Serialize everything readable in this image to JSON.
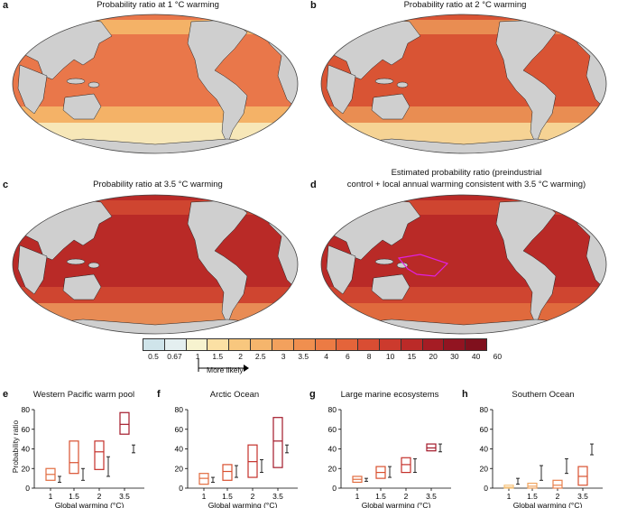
{
  "maps": [
    {
      "letter": "a",
      "title": "Probability ratio at 1 °C warming"
    },
    {
      "letter": "b",
      "title": "Probability ratio at 2 °C warming"
    },
    {
      "letter": "c",
      "title": "Probability ratio at 3.5 °C warming"
    },
    {
      "letter": "d",
      "title_line1": "Estimated probability ratio (preindustrial",
      "title_line2": "control + local annual warming consistent with 3.5 °C warming)"
    }
  ],
  "colorbar": {
    "ticks": [
      "0.5",
      "0.67",
      "1",
      "1.5",
      "2",
      "2.5",
      "3",
      "3.5",
      "4",
      "6",
      "8",
      "10",
      "15",
      "20",
      "30",
      "40",
      "60"
    ],
    "colors": [
      "#cfe4ea",
      "#e4eff0",
      "#f7f3cf",
      "#fbe0a4",
      "#f8c77e",
      "#f5b56c",
      "#f3a15d",
      "#f08f4f",
      "#ec7b44",
      "#e4643a",
      "#d94d33",
      "#cc3a2d",
      "#bb2a28",
      "#a51c24",
      "#921421",
      "#80101d"
    ],
    "arrow_label": "More likely"
  },
  "chart_data": [
    {
      "type": "box",
      "letter": "e",
      "title": "Western Pacific warm pool",
      "ylabel": "Probability ratio",
      "xlabel": "Global warming (°C)",
      "categories": [
        "1",
        "1.5",
        "2",
        "3.5"
      ],
      "ylim": [
        0,
        80
      ],
      "yticks": [
        "0",
        "20",
        "40",
        "60",
        "80"
      ],
      "boxes": [
        {
          "low": 8,
          "median": 14,
          "high": 20
        },
        {
          "low": 15,
          "median": 26,
          "high": 48
        },
        {
          "low": 19,
          "median": 37,
          "high": 48
        },
        {
          "low": 55,
          "median": 65,
          "high": 77
        }
      ],
      "whiskers": [
        {
          "low": 6,
          "mid": 9,
          "high": 12
        },
        {
          "low": 8,
          "mid": 14,
          "high": 20
        },
        {
          "low": 12,
          "mid": 22,
          "high": 32
        },
        {
          "low": 36,
          "mid": 39,
          "high": 44
        }
      ]
    },
    {
      "type": "box",
      "letter": "f",
      "title": "Arctic Ocean",
      "xlabel": "Global warming (°C)",
      "categories": [
        "1",
        "1.5",
        "2",
        "3.5"
      ],
      "ylim": [
        0,
        80
      ],
      "yticks": [
        "0",
        "20",
        "40",
        "60",
        "80"
      ],
      "boxes": [
        {
          "low": 4,
          "median": 10,
          "high": 15
        },
        {
          "low": 8,
          "median": 17,
          "high": 24
        },
        {
          "low": 11,
          "median": 27,
          "high": 44
        },
        {
          "low": 21,
          "median": 48,
          "high": 72
        }
      ],
      "whiskers": [
        {
          "low": 6,
          "mid": 8,
          "high": 11
        },
        {
          "low": 11,
          "mid": 17,
          "high": 23
        },
        {
          "low": 16,
          "mid": 22,
          "high": 29
        },
        {
          "low": 36,
          "mid": 40,
          "high": 44
        }
      ]
    },
    {
      "type": "box",
      "letter": "g",
      "title": "Large marine ecosystems",
      "xlabel": "Global warming (°C)",
      "categories": [
        "1",
        "1.5",
        "2",
        "3.5"
      ],
      "ylim": [
        0,
        80
      ],
      "yticks": [
        "0",
        "20",
        "40",
        "60",
        "80"
      ],
      "boxes": [
        {
          "low": 6,
          "median": 9,
          "high": 12
        },
        {
          "low": 10,
          "median": 16,
          "high": 22
        },
        {
          "low": 16,
          "median": 24,
          "high": 31
        },
        {
          "low": 38,
          "median": 41,
          "high": 45
        }
      ],
      "whiskers": [
        {
          "low": 7,
          "mid": 8,
          "high": 10
        },
        {
          "low": 11,
          "mid": 16,
          "high": 22
        },
        {
          "low": 16,
          "mid": 23,
          "high": 30
        },
        {
          "low": 37,
          "mid": 40,
          "high": 45
        }
      ]
    },
    {
      "type": "box",
      "letter": "h",
      "title": "Southern Ocean",
      "xlabel": "Global warming (°C)",
      "categories": [
        "1",
        "1.5",
        "2",
        "3.5"
      ],
      "ylim": [
        0,
        80
      ],
      "yticks": [
        "0",
        "20",
        "40",
        "60",
        "80"
      ],
      "boxes": [
        {
          "low": 0,
          "median": 1,
          "high": 3
        },
        {
          "low": 0,
          "median": 2,
          "high": 5
        },
        {
          "low": 0,
          "median": 3,
          "high": 8
        },
        {
          "low": 3,
          "median": 12,
          "high": 22
        }
      ],
      "whiskers": [
        {
          "low": 4,
          "mid": 7,
          "high": 10
        },
        {
          "low": 8,
          "mid": 14,
          "high": 23
        },
        {
          "low": 15,
          "mid": 21,
          "high": 30
        },
        {
          "low": 34,
          "mid": 38,
          "high": 45
        }
      ]
    }
  ]
}
